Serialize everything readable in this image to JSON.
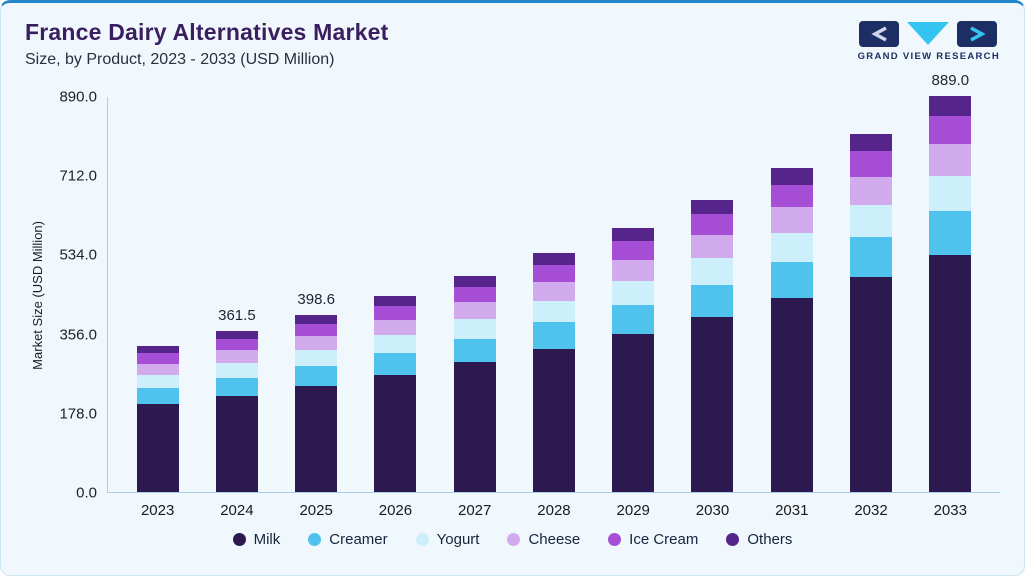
{
  "header": {
    "title": "France Dairy Alternatives Market",
    "subtitle": "Size, by Product, 2023 - 2033 (USD Million)",
    "logo_text": "GRAND VIEW RESEARCH"
  },
  "brand_colors": {
    "navy": "#1c2e63",
    "cyan": "#35c4f0",
    "accent_top_bar": "#2386c8",
    "card_background": "#f0f8fd",
    "axis": "#a9cfe2",
    "title_purple": "#3b1e5f"
  },
  "chart_data": {
    "type": "bar",
    "stacked": true,
    "title": "France Dairy Alternatives Market",
    "subtitle": "Size, by Product, 2023 - 2033 (USD Million)",
    "xlabel": "",
    "ylabel": "Market Size (USD Million)",
    "ylim": [
      0,
      890
    ],
    "yticks": [
      0.0,
      178.0,
      356.0,
      534.0,
      712.0,
      890.0
    ],
    "grid": false,
    "legend_position": "bottom",
    "categories": [
      "2023",
      "2024",
      "2025",
      "2026",
      "2027",
      "2028",
      "2029",
      "2030",
      "2031",
      "2032",
      "2033"
    ],
    "series": [
      {
        "name": "Milk",
        "color": "#2c1950",
        "values": [
          196.7,
          216.9,
          239.2,
          263.8,
          291.4,
          322.0,
          356.0,
          394.0,
          436.3,
          483.5,
          533.4
        ]
      },
      {
        "name": "Creamer",
        "color": "#4fc3ee",
        "values": [
          36.1,
          39.8,
          43.8,
          48.4,
          53.4,
          59.0,
          65.3,
          72.2,
          80.0,
          88.6,
          97.8
        ]
      },
      {
        "name": "Yogurt",
        "color": "#cdeefb",
        "values": [
          29.5,
          32.5,
          35.9,
          39.6,
          43.7,
          48.3,
          53.4,
          59.1,
          65.4,
          72.5,
          80.0
        ]
      },
      {
        "name": "Cheese",
        "color": "#d2abee",
        "values": [
          26.2,
          28.9,
          31.9,
          35.2,
          38.8,
          42.9,
          47.5,
          52.5,
          58.2,
          64.5,
          71.1
        ]
      },
      {
        "name": "Ice Cream",
        "color": "#a64fd6",
        "values": [
          23.0,
          25.3,
          27.9,
          30.8,
          34.0,
          37.6,
          41.5,
          46.0,
          50.9,
          56.4,
          62.2
        ]
      },
      {
        "name": "Others",
        "color": "#55258c",
        "values": [
          16.4,
          18.1,
          19.9,
          22.0,
          24.3,
          26.8,
          29.7,
          32.9,
          36.4,
          40.3,
          44.5
        ]
      }
    ],
    "totals": [
      327.9,
      361.5,
      398.6,
      439.8,
      485.6,
      536.6,
      593.4,
      656.7,
      727.2,
      805.8,
      889.0
    ],
    "total_labels": [
      "",
      "361.5",
      "398.6",
      "",
      "",
      "",
      "",
      "",
      "",
      "",
      "889.0"
    ]
  }
}
